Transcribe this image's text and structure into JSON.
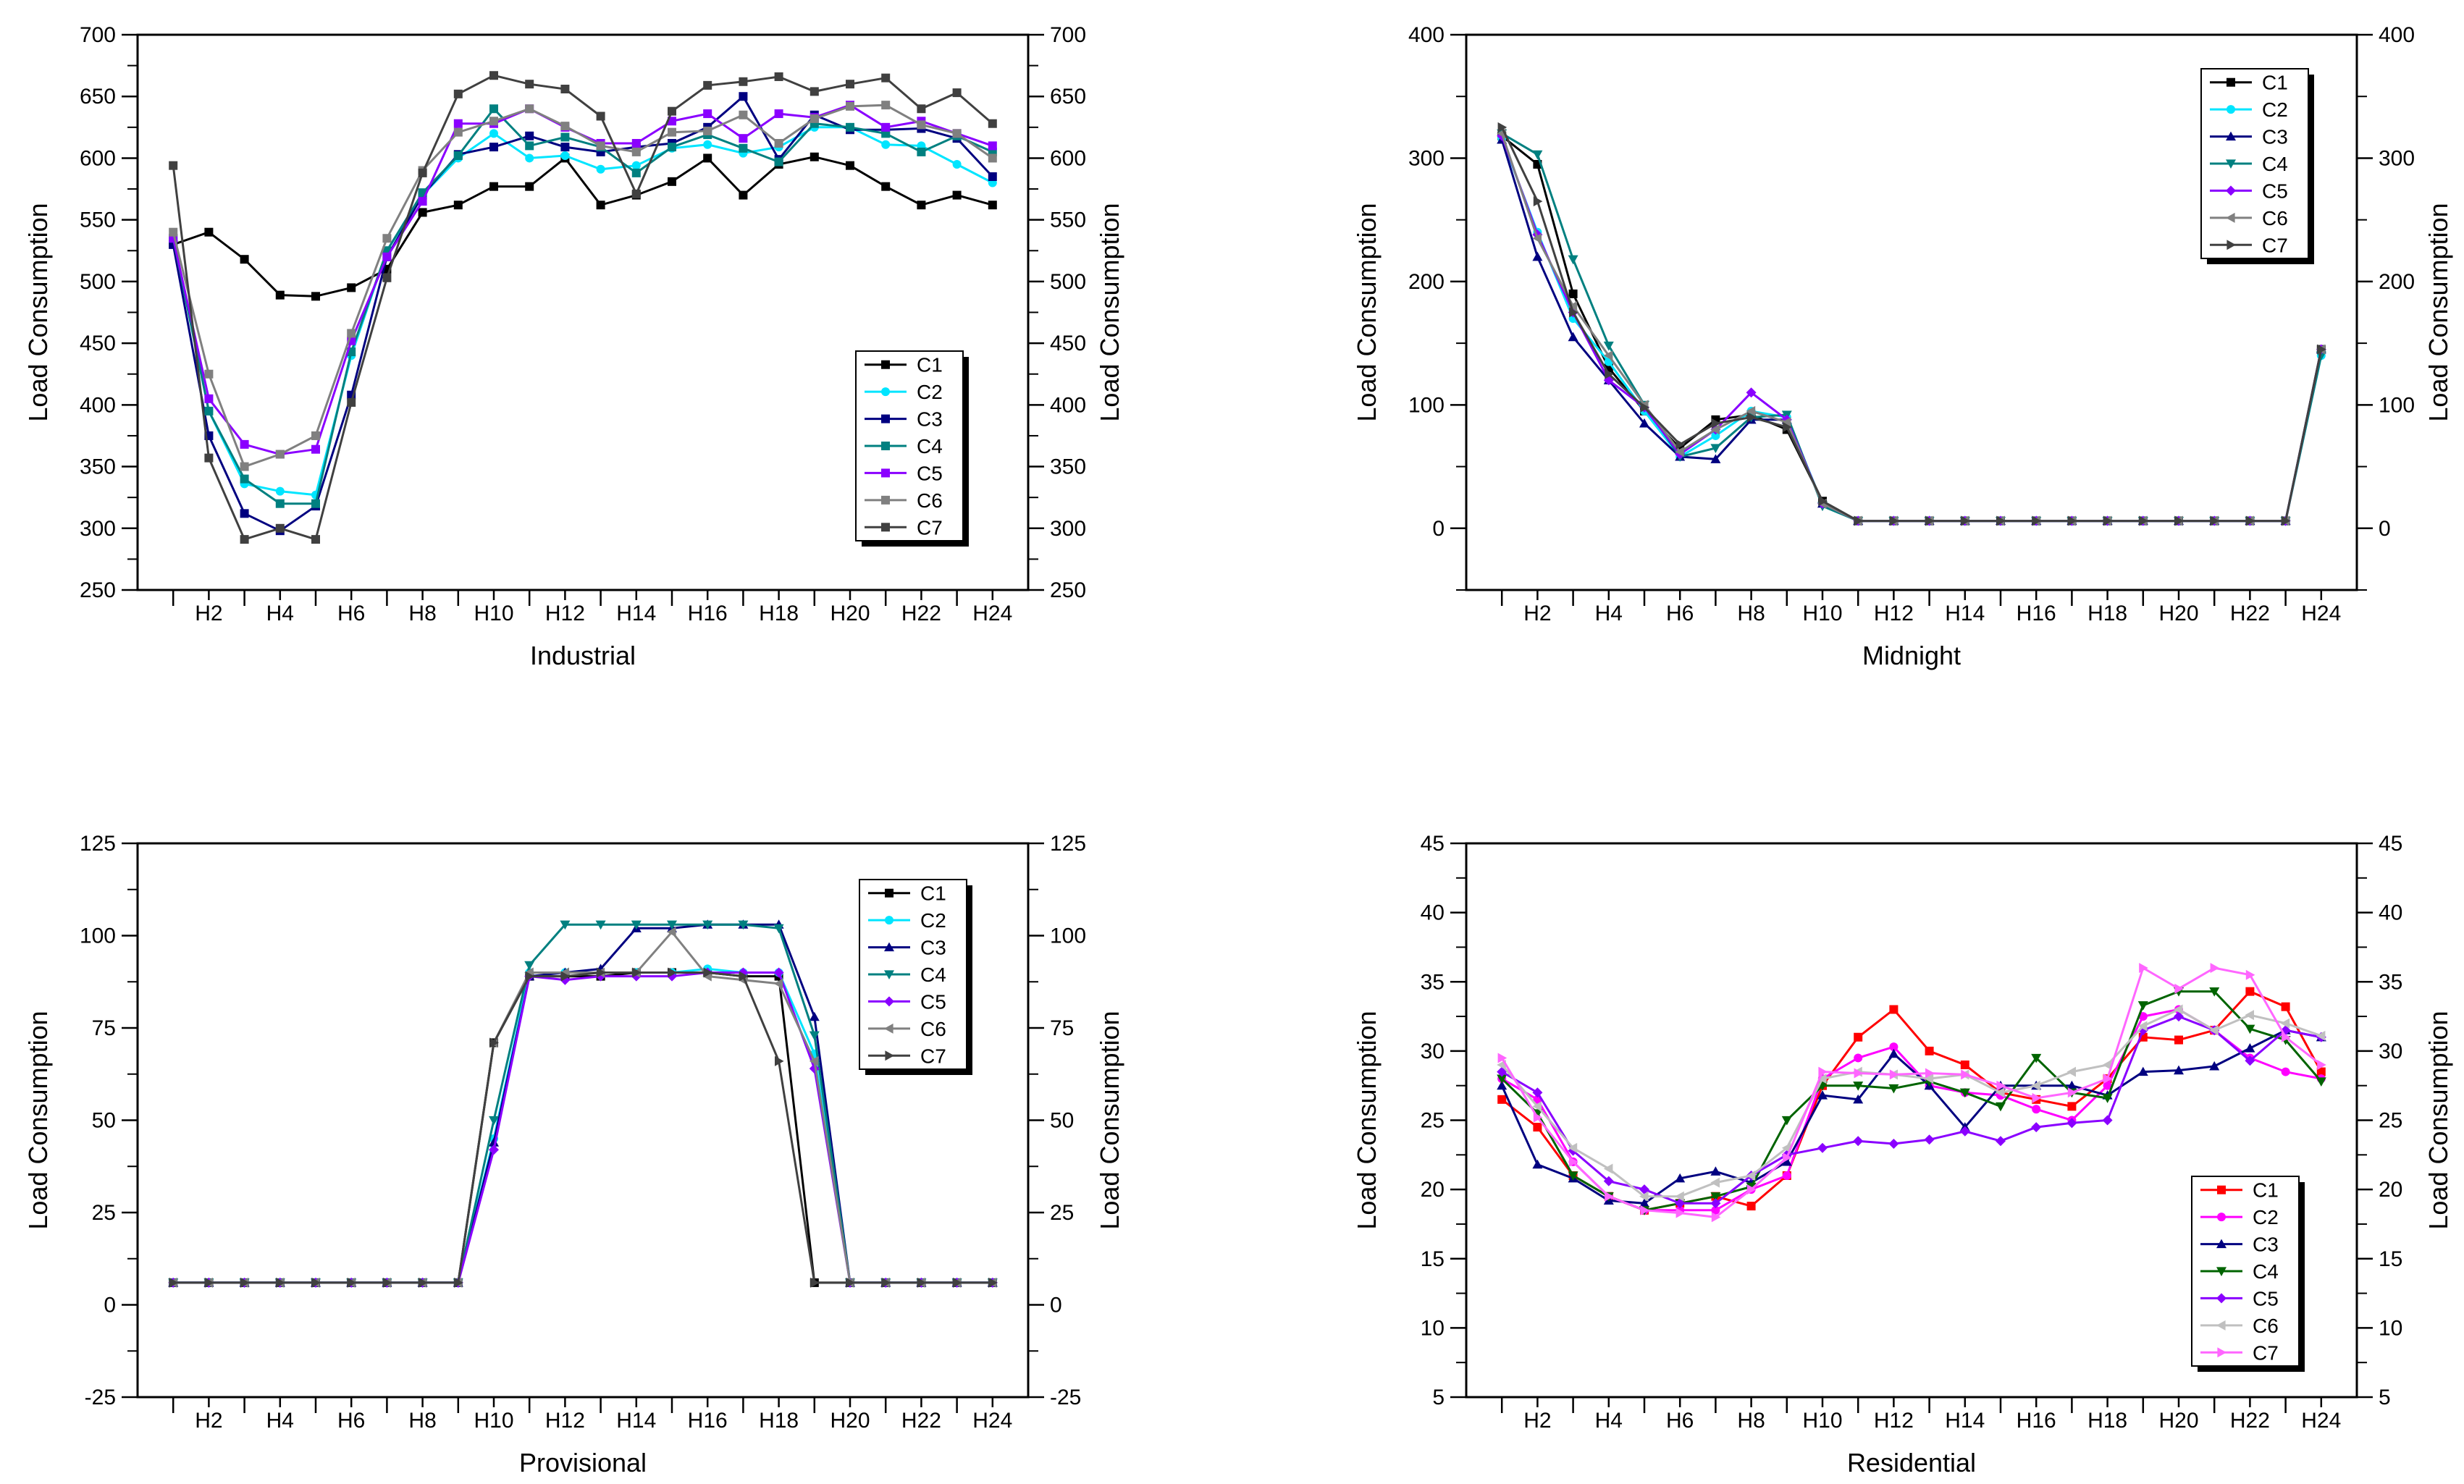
{
  "chart_data": [
    {
      "type": "line",
      "title": "Industrial",
      "xlabel": "Industrial",
      "ylabel": "Load Consumption",
      "ylim": [
        250,
        700
      ],
      "yticks": [
        250,
        300,
        350,
        400,
        450,
        500,
        550,
        600,
        650,
        700
      ],
      "x": [
        1,
        2,
        3,
        4,
        5,
        6,
        7,
        8,
        9,
        10,
        11,
        12,
        13,
        14,
        15,
        16,
        17,
        18,
        19,
        20,
        21,
        22,
        23,
        24
      ],
      "xticklabels": [
        "H2",
        "H4",
        "H6",
        "H8",
        "H10",
        "H12",
        "H14",
        "H16",
        "H18",
        "H20",
        "H22",
        "H24"
      ],
      "legend_pos": "right-middle",
      "series": [
        {
          "name": "C1",
          "color": "#000000",
          "marker": "square",
          "values": [
            530,
            540,
            518,
            489,
            488,
            495,
            510,
            556,
            562,
            577,
            577,
            600,
            562,
            570,
            581,
            600,
            570,
            595,
            601,
            594,
            577,
            562,
            570,
            562
          ]
        },
        {
          "name": "C2",
          "color": "#00e5ff",
          "marker": "circle",
          "values": [
            535,
            395,
            336,
            330,
            327,
            440,
            525,
            570,
            600,
            620,
            600,
            602,
            591,
            594,
            608,
            611,
            604,
            609,
            625,
            625,
            611,
            610,
            595,
            580
          ]
        },
        {
          "name": "C3",
          "color": "#000080",
          "marker": "square",
          "values": [
            530,
            375,
            312,
            298,
            318,
            408,
            520,
            570,
            603,
            609,
            618,
            609,
            605,
            609,
            612,
            625,
            650,
            599,
            635,
            623,
            623,
            624,
            616,
            585
          ]
        },
        {
          "name": "C4",
          "color": "#008080",
          "marker": "square",
          "values": [
            535,
            395,
            340,
            320,
            320,
            443,
            525,
            572,
            602,
            640,
            610,
            617,
            609,
            588,
            609,
            619,
            608,
            597,
            628,
            625,
            620,
            605,
            618,
            605
          ]
        },
        {
          "name": "C5",
          "color": "#8a00ff",
          "marker": "square",
          "values": [
            535,
            405,
            368,
            360,
            364,
            452,
            520,
            565,
            628,
            628,
            640,
            625,
            612,
            612,
            630,
            636,
            616,
            636,
            633,
            643,
            625,
            630,
            620,
            610
          ]
        },
        {
          "name": "C6",
          "color": "#808080",
          "marker": "square",
          "values": [
            540,
            425,
            350,
            360,
            375,
            458,
            535,
            590,
            621,
            630,
            640,
            626,
            610,
            605,
            621,
            622,
            635,
            612,
            632,
            642,
            643,
            627,
            620,
            600
          ]
        },
        {
          "name": "C7",
          "color": "#404040",
          "marker": "square",
          "values": [
            594,
            357,
            291,
            300,
            291,
            402,
            503,
            588,
            652,
            667,
            660,
            656,
            634,
            571,
            638,
            659,
            662,
            666,
            654,
            660,
            665,
            640,
            653,
            628
          ]
        }
      ]
    },
    {
      "type": "line",
      "title": "Midnight",
      "xlabel": "Midnight",
      "ylabel": "Load Consumption",
      "ylim": [
        -50,
        400
      ],
      "yticks": [
        0,
        100,
        200,
        300,
        400
      ],
      "x": [
        1,
        2,
        3,
        4,
        5,
        6,
        7,
        8,
        9,
        10,
        11,
        12,
        13,
        14,
        15,
        16,
        17,
        18,
        19,
        20,
        21,
        22,
        23,
        24
      ],
      "xticklabels": [
        "H2",
        "H4",
        "H6",
        "H8",
        "H10",
        "H12",
        "H14",
        "H16",
        "H18",
        "H20",
        "H22",
        "H24"
      ],
      "legend_pos": "top-right",
      "series": [
        {
          "name": "C1",
          "color": "#000000",
          "marker": "square",
          "values": [
            318,
            295,
            190,
            130,
            95,
            65,
            88,
            92,
            80,
            22,
            6,
            6,
            6,
            6,
            6,
            6,
            6,
            6,
            6,
            6,
            6,
            6,
            6,
            145
          ]
        },
        {
          "name": "C2",
          "color": "#00e5ff",
          "marker": "circle",
          "values": [
            316,
            240,
            170,
            135,
            95,
            58,
            75,
            95,
            90,
            20,
            6,
            6,
            6,
            6,
            6,
            6,
            6,
            6,
            6,
            6,
            6,
            6,
            6,
            140
          ]
        },
        {
          "name": "C3",
          "color": "#000080",
          "marker": "triangle-up",
          "values": [
            315,
            220,
            155,
            120,
            85,
            58,
            56,
            88,
            88,
            20,
            6,
            6,
            6,
            6,
            6,
            6,
            6,
            6,
            6,
            6,
            6,
            6,
            6,
            145
          ]
        },
        {
          "name": "C4",
          "color": "#008080",
          "marker": "triangle-down",
          "values": [
            320,
            303,
            218,
            148,
            100,
            58,
            65,
            90,
            92,
            18,
            6,
            6,
            6,
            6,
            6,
            6,
            6,
            6,
            6,
            6,
            6,
            6,
            6,
            140
          ]
        },
        {
          "name": "C5",
          "color": "#8a00ff",
          "marker": "diamond",
          "values": [
            318,
            238,
            175,
            120,
            98,
            60,
            80,
            110,
            88,
            20,
            6,
            6,
            6,
            6,
            6,
            6,
            6,
            6,
            6,
            6,
            6,
            6,
            6,
            145
          ]
        },
        {
          "name": "C6",
          "color": "#808080",
          "marker": "triangle-left",
          "values": [
            320,
            235,
            180,
            140,
            100,
            62,
            80,
            95,
            86,
            20,
            6,
            6,
            6,
            6,
            6,
            6,
            6,
            6,
            6,
            6,
            6,
            6,
            6,
            145
          ]
        },
        {
          "name": "C7",
          "color": "#404040",
          "marker": "triangle-right",
          "values": [
            325,
            265,
            175,
            125,
            98,
            68,
            85,
            90,
            82,
            22,
            6,
            6,
            6,
            6,
            6,
            6,
            6,
            6,
            6,
            6,
            6,
            6,
            6,
            145
          ]
        }
      ]
    },
    {
      "type": "line",
      "title": "Provisional",
      "xlabel": "Provisional",
      "ylabel": "Load Consumption",
      "ylim": [
        -25,
        125
      ],
      "yticks": [
        -25,
        0,
        25,
        50,
        75,
        100,
        125
      ],
      "x": [
        1,
        2,
        3,
        4,
        5,
        6,
        7,
        8,
        9,
        10,
        11,
        12,
        13,
        14,
        15,
        16,
        17,
        18,
        19,
        20,
        21,
        22,
        23,
        24
      ],
      "xticklabels": [
        "H2",
        "H4",
        "H6",
        "H8",
        "H10",
        "H12",
        "H14",
        "H16",
        "H18",
        "H20",
        "H22",
        "H24"
      ],
      "legend_pos": "top-right",
      "series": [
        {
          "name": "C1",
          "color": "#000000",
          "marker": "square",
          "values": [
            6,
            6,
            6,
            6,
            6,
            6,
            6,
            6,
            6,
            71,
            89,
            89,
            89,
            90,
            90,
            90,
            89,
            89,
            6,
            6,
            6,
            6,
            6,
            6
          ]
        },
        {
          "name": "C2",
          "color": "#00e5ff",
          "marker": "circle",
          "values": [
            6,
            6,
            6,
            6,
            6,
            6,
            6,
            6,
            6,
            45,
            90,
            90,
            90,
            90,
            90,
            91,
            90,
            90,
            68,
            6,
            6,
            6,
            6,
            6
          ]
        },
        {
          "name": "C3",
          "color": "#000080",
          "marker": "triangle-up",
          "values": [
            6,
            6,
            6,
            6,
            6,
            6,
            6,
            6,
            6,
            44,
            89,
            90,
            91,
            102,
            102,
            103,
            103,
            103,
            78,
            6,
            6,
            6,
            6,
            6
          ]
        },
        {
          "name": "C4",
          "color": "#008080",
          "marker": "triangle-down",
          "values": [
            6,
            6,
            6,
            6,
            6,
            6,
            6,
            6,
            6,
            50,
            92,
            103,
            103,
            103,
            103,
            103,
            103,
            102,
            73,
            6,
            6,
            6,
            6,
            6
          ]
        },
        {
          "name": "C5",
          "color": "#8a00ff",
          "marker": "diamond",
          "values": [
            6,
            6,
            6,
            6,
            6,
            6,
            6,
            6,
            6,
            42,
            89,
            88,
            89,
            89,
            89,
            90,
            90,
            90,
            64,
            6,
            6,
            6,
            6,
            6
          ]
        },
        {
          "name": "C6",
          "color": "#808080",
          "marker": "triangle-left",
          "values": [
            6,
            6,
            6,
            6,
            6,
            6,
            6,
            6,
            6,
            71,
            90,
            90,
            90,
            90,
            101,
            89,
            88,
            87,
            66,
            6,
            6,
            6,
            6,
            6
          ]
        },
        {
          "name": "C7",
          "color": "#404040",
          "marker": "triangle-right",
          "values": [
            6,
            6,
            6,
            6,
            6,
            6,
            6,
            6,
            6,
            71,
            89,
            89,
            90,
            90,
            90,
            90,
            89,
            66,
            6,
            6,
            6,
            6,
            6,
            6
          ]
        }
      ]
    },
    {
      "type": "line",
      "title": "Residential",
      "xlabel": "Residential",
      "ylabel": "Load Consumption",
      "ylim": [
        5,
        45
      ],
      "yticks": [
        5,
        10,
        15,
        20,
        25,
        30,
        35,
        40,
        45
      ],
      "x": [
        1,
        2,
        3,
        4,
        5,
        6,
        7,
        8,
        9,
        10,
        11,
        12,
        13,
        14,
        15,
        16,
        17,
        18,
        19,
        20,
        21,
        22,
        23,
        24
      ],
      "xticklabels": [
        "H2",
        "H4",
        "H6",
        "H8",
        "H10",
        "H12",
        "H14",
        "H16",
        "H18",
        "H20",
        "H22",
        "H24"
      ],
      "legend_pos": "bottom-right",
      "series": [
        {
          "name": "C1",
          "color": "#ff0000",
          "marker": "square",
          "values": [
            26.5,
            24.5,
            21,
            19.5,
            18.5,
            19,
            19.5,
            18.8,
            21,
            27.5,
            31,
            33,
            30,
            29,
            27,
            26.5,
            26,
            28,
            31,
            30.8,
            31.5,
            34.3,
            33.2,
            28.5
          ]
        },
        {
          "name": "C2",
          "color": "#ff00ff",
          "marker": "circle",
          "values": [
            28,
            26.5,
            22,
            19.5,
            18.5,
            18.5,
            18.5,
            20,
            21,
            28,
            29.5,
            30.3,
            27.5,
            27,
            26.8,
            25.8,
            25,
            27.5,
            32.5,
            33,
            31.5,
            29.5,
            28.5,
            28
          ]
        },
        {
          "name": "C3",
          "color": "#000080",
          "marker": "triangle-up",
          "values": [
            27.5,
            21.8,
            20.8,
            19.2,
            19,
            20.8,
            21.3,
            20.5,
            22,
            26.8,
            26.5,
            29.8,
            27.5,
            24.5,
            27.5,
            27.5,
            27.5,
            26.8,
            28.5,
            28.6,
            28.9,
            30.2,
            31.5,
            31
          ]
        },
        {
          "name": "C4",
          "color": "#006400",
          "marker": "triangle-down",
          "values": [
            28,
            25.5,
            21,
            19.5,
            18.5,
            19,
            19.5,
            20.2,
            25,
            27.5,
            27.5,
            27.3,
            27.8,
            27,
            26,
            29.5,
            27,
            26.6,
            33.3,
            34.3,
            34.3,
            31.6,
            30.8,
            27.8
          ]
        },
        {
          "name": "C5",
          "color": "#8a00ff",
          "marker": "diamond",
          "values": [
            28.5,
            27,
            22.8,
            20.6,
            20,
            19,
            19,
            21,
            22.5,
            23,
            23.5,
            23.3,
            23.6,
            24.2,
            23.5,
            24.5,
            24.8,
            25,
            31.5,
            32.5,
            31.5,
            29.3,
            31.5,
            31
          ]
        },
        {
          "name": "C6",
          "color": "#c0c0c0",
          "marker": "triangle-left",
          "values": [
            29,
            26,
            23,
            21.5,
            19.5,
            19.5,
            20.5,
            21,
            23,
            28,
            28.5,
            28.3,
            28,
            28.3,
            27,
            27.5,
            28.5,
            29,
            31.8,
            33,
            31.5,
            32.6,
            32,
            31.1
          ]
        },
        {
          "name": "C7",
          "color": "#ff66ff",
          "marker": "triangle-right",
          "values": [
            29.5,
            25.2,
            22,
            19.5,
            18.5,
            18.3,
            18,
            20,
            22.3,
            28.5,
            28.4,
            28.3,
            28.4,
            28.3,
            27.5,
            26.6,
            27,
            28,
            36,
            34.5,
            36,
            35.5,
            31,
            29
          ]
        }
      ]
    }
  ]
}
